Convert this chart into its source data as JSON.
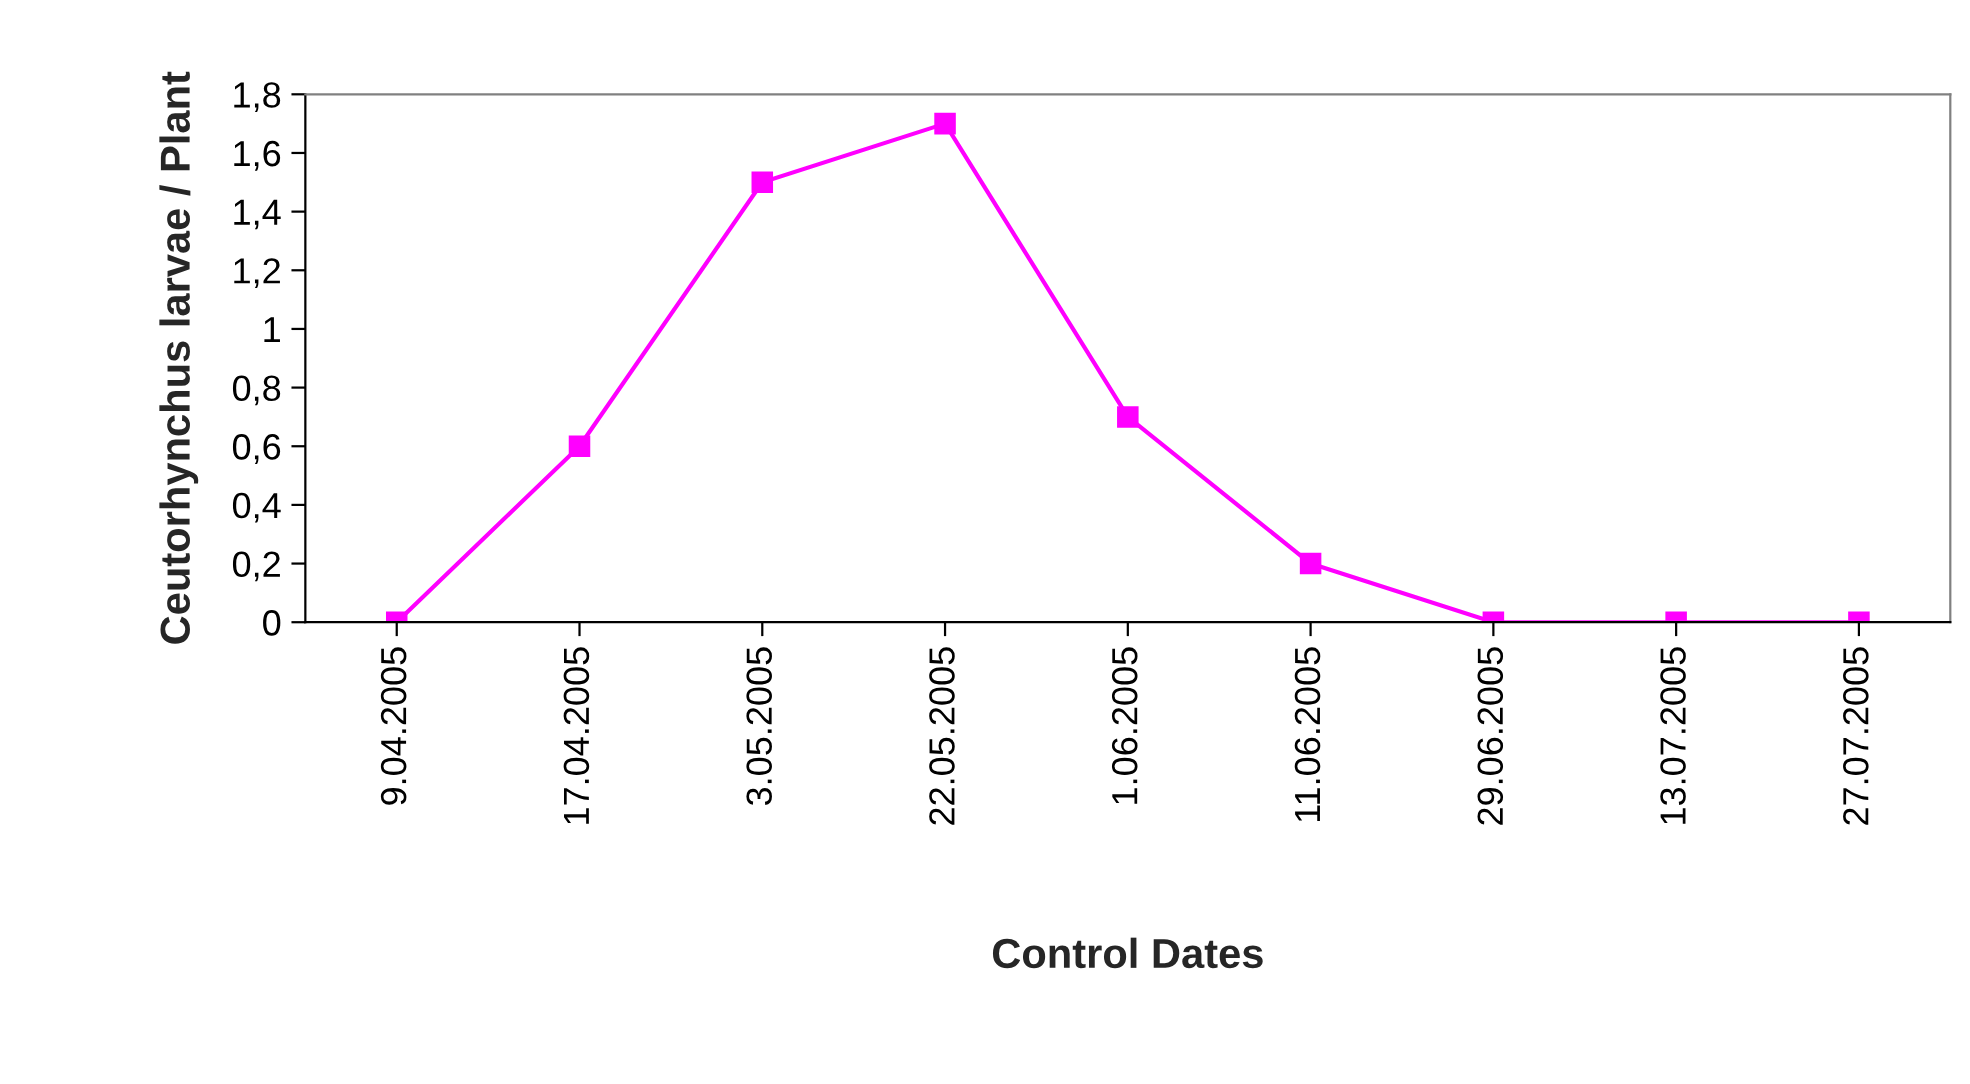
{
  "chart_data": {
    "type": "line",
    "xlabel": "Control Dates",
    "ylabel": "Ceutorhynchus larvae / Plant",
    "categories": [
      "9.04.2005",
      "17.04.2005",
      "3.05.2005",
      "22.05.2005",
      "1.06.2005",
      "11.06.2005",
      "29.06.2005",
      "13.07.2005",
      "27.07.2005"
    ],
    "series": [
      {
        "color": "#ff00ff",
        "values": [
          0,
          0.6,
          1.5,
          1.7,
          0.7,
          0.2,
          0,
          0,
          0
        ]
      }
    ],
    "ylim": [
      0,
      1.8
    ],
    "yticks": [
      0,
      {
        "value": 0.2,
        "label": "0,2"
      },
      {
        "value": 0.4,
        "label": "0,4"
      },
      {
        "value": 0.6,
        "label": "0,6"
      },
      {
        "value": 0.8,
        "label": "0,8"
      },
      1,
      {
        "value": 1.2,
        "label": "1,2"
      },
      {
        "value": 1.4,
        "label": "1,4"
      },
      {
        "value": 1.6,
        "label": "1,6"
      },
      {
        "value": 1.8,
        "label": "1,8"
      }
    ],
    "grid": false,
    "marker": "square",
    "line_style": "solid"
  }
}
